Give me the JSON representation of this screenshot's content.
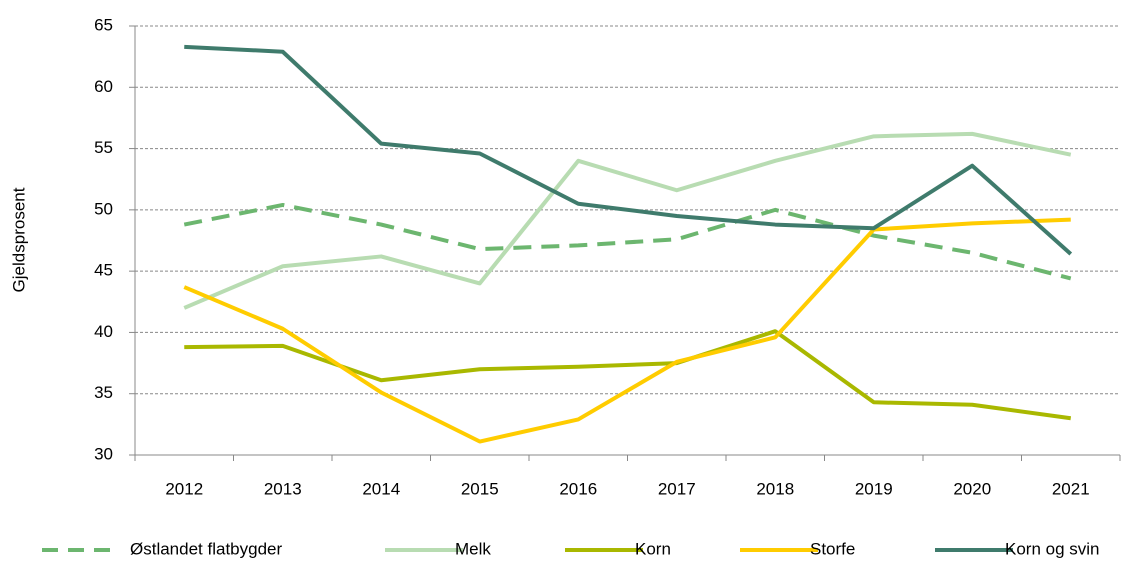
{
  "chart_data": {
    "type": "line",
    "y_label": "Gjeldsprosent",
    "categories": [
      "2012",
      "2013",
      "2014",
      "2015",
      "2016",
      "2017",
      "2018",
      "2019",
      "2020",
      "2021"
    ],
    "series": [
      {
        "name": "Østlandet flatbygder",
        "color": "#6cb66f",
        "dashed": true,
        "values": [
          48.8,
          50.4,
          48.8,
          46.8,
          47.1,
          47.6,
          50.0,
          47.9,
          46.5,
          44.4
        ]
      },
      {
        "name": "Melk",
        "color": "#b8dcb2",
        "values": [
          42.0,
          45.4,
          46.2,
          44.0,
          54.0,
          51.6,
          54.0,
          56.0,
          56.2,
          54.5
        ]
      },
      {
        "name": "Korn",
        "color": "#a9b800",
        "values": [
          38.8,
          38.9,
          36.1,
          37.0,
          37.2,
          37.5,
          40.1,
          34.3,
          34.1,
          33.0
        ]
      },
      {
        "name": "Storfe",
        "color": "#ffcc00",
        "values": [
          43.7,
          40.3,
          35.1,
          31.1,
          32.9,
          37.6,
          39.6,
          48.4,
          48.9,
          49.2
        ]
      },
      {
        "name": "Korn og svin",
        "color": "#3f7b6c",
        "values": [
          63.3,
          62.9,
          55.4,
          54.6,
          50.5,
          49.5,
          48.8,
          48.5,
          53.6,
          46.4
        ]
      }
    ],
    "ylim": [
      30,
      65
    ],
    "yticks": [
      30,
      35,
      40,
      45,
      50,
      55,
      60,
      65
    ],
    "grid": true,
    "legend": "bottom"
  }
}
